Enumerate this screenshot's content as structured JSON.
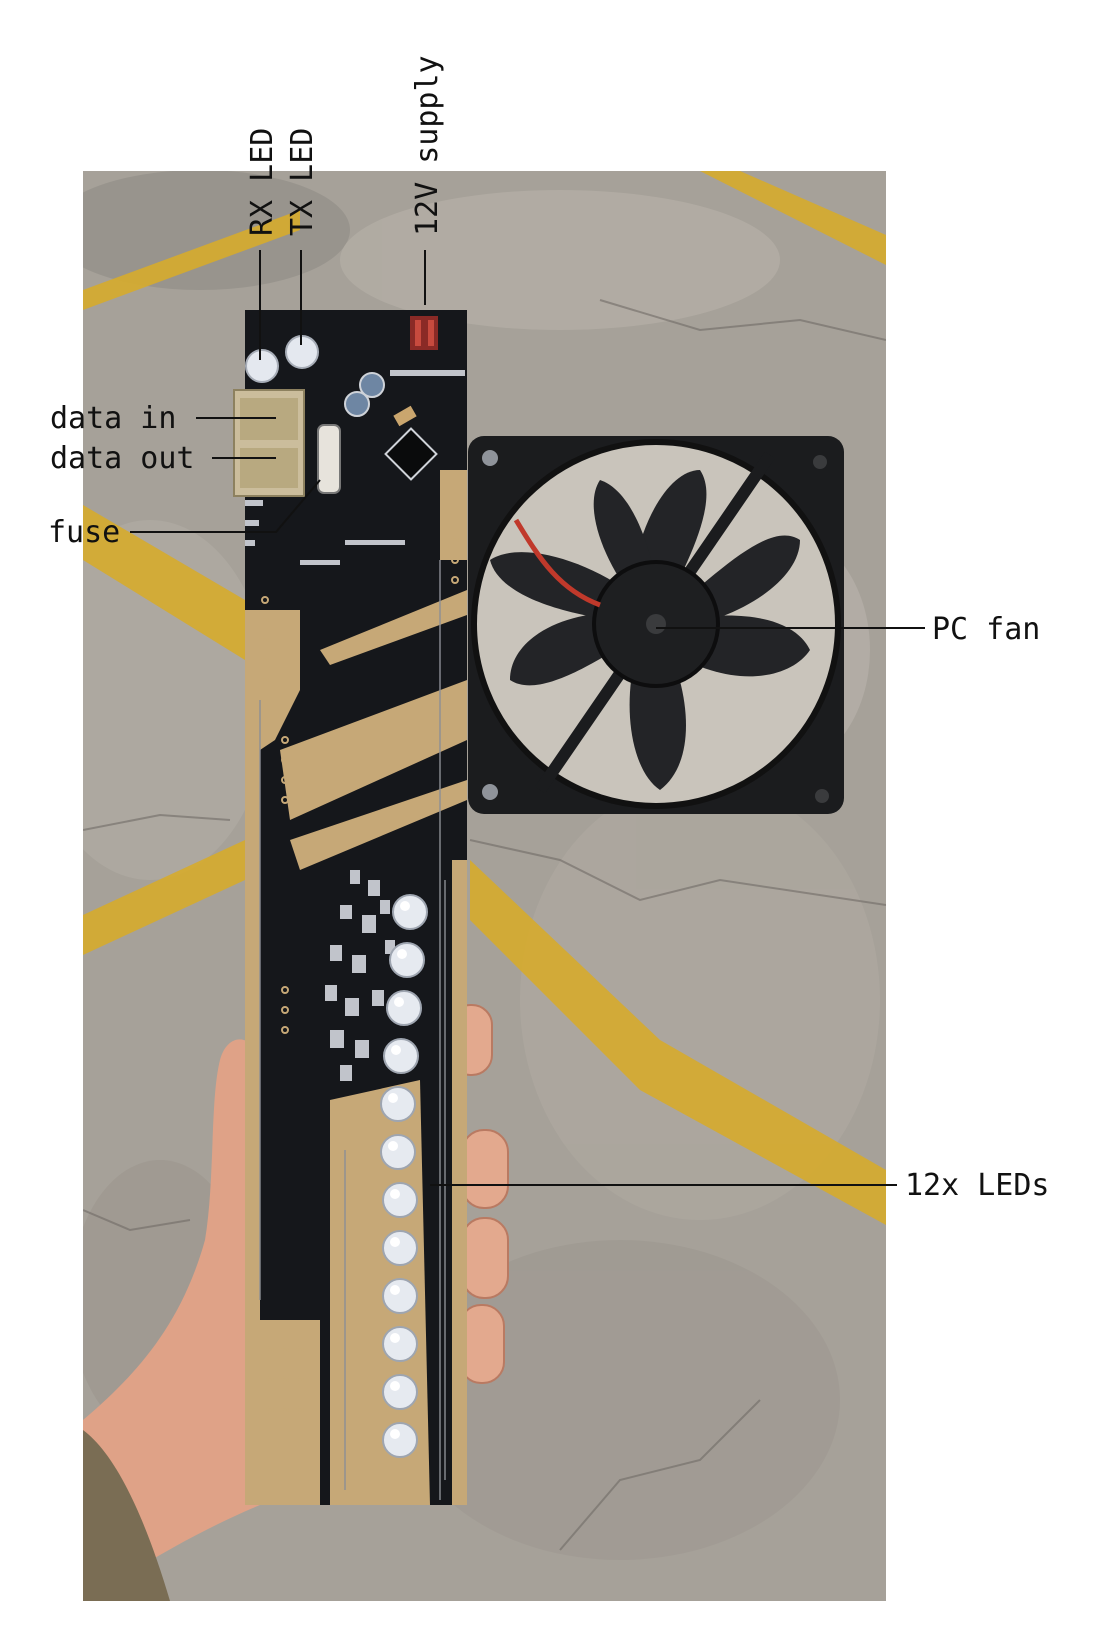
{
  "labels": {
    "rx_led": "RX LED",
    "tx_led": "TX LED",
    "supply": "12V supply",
    "data_in": "data in",
    "data_out": "data out",
    "fuse": "fuse",
    "pc_fan": "PC fan",
    "leds": "12x LEDs"
  },
  "colors": {
    "background": "#ffffff",
    "label_text": "#111111",
    "concrete": "#a8a39a",
    "yellow_line": "#d9ae2a",
    "pcb_black": "#14161a",
    "pcb_gold": "#c7a978",
    "fan_black": "#1b1c1e",
    "skin": "#e1a488"
  }
}
